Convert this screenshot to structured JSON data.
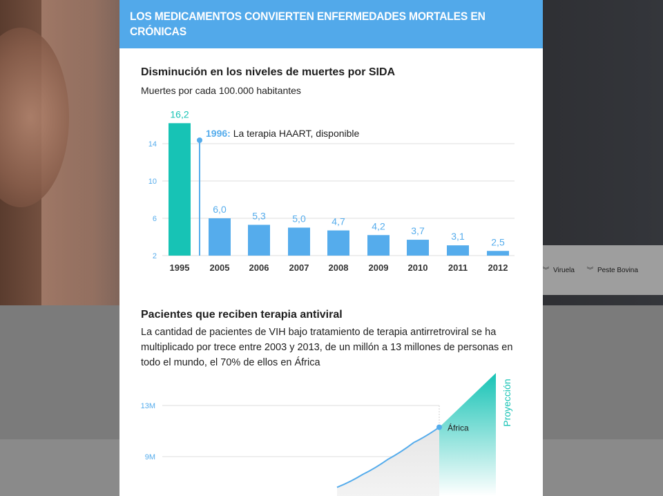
{
  "background": {
    "nav_items": [
      {
        "label": "Viruela",
        "icon": "chevron-double-down-icon"
      },
      {
        "label": "Peste Bovina",
        "icon": "chevron-double-down-icon"
      }
    ]
  },
  "infographic": {
    "title": "LOS MEDICAMENTOS CONVIERTEN ENFERMEDADES MORTALES EN CRÓNICAS",
    "colors": {
      "header": "#52a9ea",
      "bar": "#55acec",
      "highlight": "#17c3b5",
      "text": "#1d1d1d"
    },
    "section1": {
      "title": "Disminución en los niveles de muertes por SIDA",
      "subtitle": "Muertes por cada 100.000 habitantes",
      "annotation_year": "1996:",
      "annotation_text": " La terapia HAART, disponible"
    },
    "section2": {
      "title": "Pacientes que reciben terapia antiviral",
      "description": "La cantidad de pacientes de VIH bajo tratamiento de terapia antirretroviral se ha multiplicado por trece entre 2003 y 2013, de un millón a 13 millones de personas en todo el mundo, el 70% de ellos en África",
      "point_label": "África",
      "projection_label": "Proyección"
    }
  },
  "chart_data": [
    {
      "type": "bar",
      "title": "Disminución en los niveles de muertes por SIDA",
      "subtitle": "Muertes por cada 100.000 habitantes",
      "categories": [
        "1995",
        "2005",
        "2006",
        "2007",
        "2008",
        "2009",
        "2010",
        "2011",
        "2012"
      ],
      "values": [
        16.2,
        6.0,
        5.3,
        5.0,
        4.7,
        4.2,
        3.7,
        3.1,
        2.5
      ],
      "value_labels": [
        "16,2",
        "6,0",
        "5,3",
        "5,0",
        "4,7",
        "4,2",
        "3,7",
        "3,1",
        "2,5"
      ],
      "highlight_category": "1995",
      "yticks": [
        2,
        6,
        10,
        14
      ],
      "ylim": [
        2,
        16.2
      ],
      "grid": true,
      "annotation": {
        "x_after": "1995",
        "text": "1996: La terapia HAART, disponible"
      }
    },
    {
      "type": "area",
      "title": "Pacientes que reciben terapia antiviral",
      "yticks": [
        {
          "value": 9,
          "label": "9M"
        },
        {
          "value": 13,
          "label": "13M"
        }
      ],
      "ylim": [
        6.5,
        15
      ],
      "series": [
        {
          "x": [
            0.0,
            0.25,
            0.5,
            0.75,
            1.0
          ],
          "y": [
            6.6,
            7.6,
            8.8,
            10.1,
            11.3
          ]
        }
      ],
      "highlight_point": {
        "label": "África",
        "y": 11.3
      },
      "projection_label": "Proyección"
    }
  ]
}
